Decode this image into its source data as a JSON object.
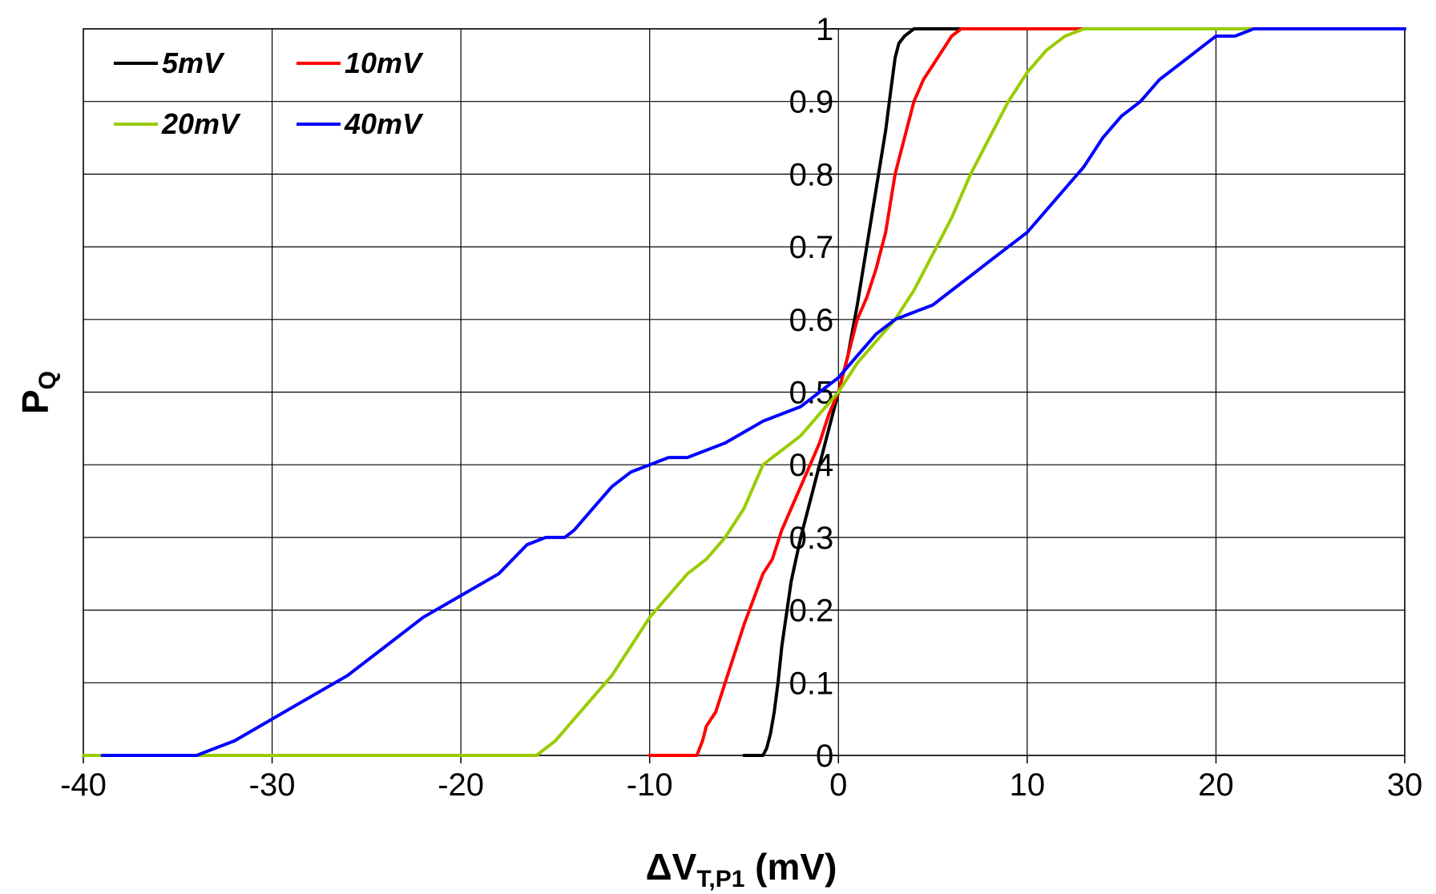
{
  "chart_data": {
    "type": "line",
    "title": "",
    "xlabel": {
      "main": "ΔV",
      "sub": "T,P1",
      "unit": " (mV)"
    },
    "ylabel": {
      "main": "P",
      "sub": "Q"
    },
    "xlim": [
      -40,
      30
    ],
    "ylim": [
      0,
      1
    ],
    "x_ticks": [
      -40,
      -30,
      -20,
      -10,
      0,
      10,
      20,
      30
    ],
    "y_ticks": [
      0,
      0.1,
      0.2,
      0.3,
      0.4,
      0.5,
      0.6,
      0.7,
      0.8,
      0.9,
      1
    ],
    "x_tick_labels": [
      "-40",
      "-30",
      "-20",
      "-10",
      "0",
      "10",
      "20",
      "30"
    ],
    "y_tick_labels": [
      "0",
      "0.1",
      "0.2",
      "0.3",
      "0.4",
      "0.5",
      "0.6",
      "0.7",
      "0.8",
      "0.9",
      "1"
    ],
    "grid": true,
    "legend_position": "top-left",
    "series": [
      {
        "name": "5mV",
        "color": "#000000",
        "x": [
          -5,
          -4,
          -3.8,
          -3.6,
          -3.4,
          -3.2,
          -3,
          -2.5,
          -2,
          -1.5,
          -1,
          -0.5,
          0,
          0.5,
          1,
          1.5,
          2,
          2.5,
          2.8,
          3,
          3.2,
          3.5,
          4,
          5,
          10,
          30
        ],
        "y": [
          0,
          0,
          0.01,
          0.03,
          0.06,
          0.1,
          0.15,
          0.24,
          0.3,
          0.35,
          0.4,
          0.45,
          0.5,
          0.55,
          0.62,
          0.7,
          0.78,
          0.86,
          0.92,
          0.96,
          0.98,
          0.99,
          1,
          1,
          1,
          1
        ]
      },
      {
        "name": "10mV",
        "color": "#ff0000",
        "x": [
          -10,
          -8,
          -7.5,
          -7.2,
          -7,
          -6.5,
          -6,
          -5,
          -4,
          -3.5,
          -3,
          -2.5,
          -2,
          -1.5,
          -1,
          -0.5,
          0,
          0.5,
          1,
          1.5,
          2,
          2.5,
          3,
          3.5,
          4,
          4.5,
          5,
          5.5,
          6,
          6.5,
          7,
          10,
          30
        ],
        "y": [
          0,
          0,
          0,
          0.02,
          0.04,
          0.06,
          0.1,
          0.18,
          0.25,
          0.27,
          0.31,
          0.34,
          0.37,
          0.4,
          0.43,
          0.47,
          0.5,
          0.55,
          0.6,
          0.63,
          0.67,
          0.72,
          0.8,
          0.85,
          0.9,
          0.93,
          0.95,
          0.97,
          0.99,
          1,
          1,
          1,
          1
        ]
      },
      {
        "name": "20mV",
        "color": "#99cc00",
        "x": [
          -40,
          -16,
          -15,
          -14,
          -13,
          -12,
          -11,
          -10,
          -9,
          -8,
          -7,
          -6,
          -5,
          -4.5,
          -4,
          -3.5,
          -3,
          -2,
          -1,
          0,
          1,
          2,
          3,
          4,
          5,
          6,
          7,
          8,
          9,
          10,
          11,
          12,
          13,
          14,
          20,
          30
        ],
        "y": [
          0,
          0,
          0.02,
          0.05,
          0.08,
          0.11,
          0.15,
          0.19,
          0.22,
          0.25,
          0.27,
          0.3,
          0.34,
          0.37,
          0.4,
          0.41,
          0.42,
          0.44,
          0.47,
          0.5,
          0.54,
          0.57,
          0.6,
          0.64,
          0.69,
          0.74,
          0.8,
          0.85,
          0.9,
          0.94,
          0.97,
          0.99,
          1,
          1,
          1,
          1
        ]
      },
      {
        "name": "40mV",
        "color": "#0000ff",
        "x": [
          -39,
          -34,
          -33,
          -32,
          -30,
          -28,
          -26,
          -24,
          -22,
          -20,
          -18,
          -16.5,
          -15.5,
          -14.5,
          -14,
          -13,
          -12,
          -11,
          -10,
          -9,
          -8,
          -6,
          -4,
          -2,
          -1,
          0,
          1,
          2,
          3,
          4,
          5,
          6,
          7,
          8,
          9,
          10,
          11,
          12,
          13,
          14,
          15,
          16,
          17,
          18,
          19,
          20,
          21,
          22,
          23,
          25,
          30
        ],
        "y": [
          0,
          0,
          0.01,
          0.02,
          0.05,
          0.08,
          0.11,
          0.15,
          0.19,
          0.22,
          0.25,
          0.29,
          0.3,
          0.3,
          0.31,
          0.34,
          0.37,
          0.39,
          0.4,
          0.41,
          0.41,
          0.43,
          0.46,
          0.48,
          0.5,
          0.52,
          0.55,
          0.58,
          0.6,
          0.61,
          0.62,
          0.64,
          0.66,
          0.68,
          0.7,
          0.72,
          0.75,
          0.78,
          0.81,
          0.85,
          0.88,
          0.9,
          0.93,
          0.95,
          0.97,
          0.99,
          0.99,
          1,
          1,
          1,
          1
        ]
      }
    ]
  }
}
